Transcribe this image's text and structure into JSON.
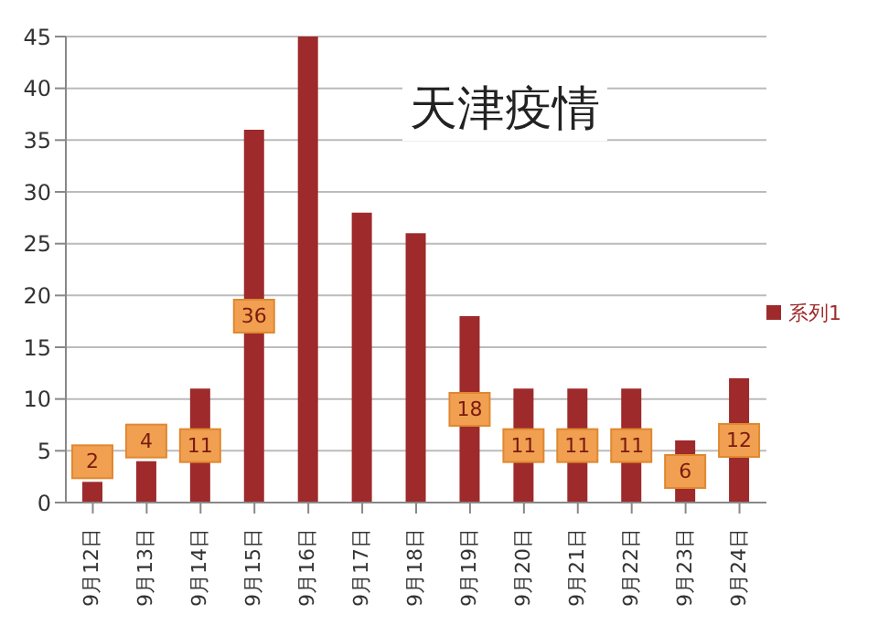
{
  "chart_data": {
    "type": "bar",
    "title": "天津疫情",
    "categories": [
      "9月12日",
      "9月13日",
      "9月14日",
      "9月15日",
      "9月16日",
      "9月17日",
      "9月18日",
      "9月19日",
      "9月20日",
      "9月21日",
      "9月22日",
      "9月23日",
      "9月24日"
    ],
    "series": [
      {
        "name": "系列1",
        "color": "#9e2a2b",
        "values": [
          2,
          4,
          11,
          36,
          45,
          28,
          26,
          18,
          11,
          11,
          11,
          6,
          12
        ],
        "value_labels": [
          "2",
          "4",
          "11",
          "36",
          null,
          null,
          null,
          "18",
          "11",
          "11",
          "11",
          "6",
          "12"
        ]
      }
    ],
    "ylim": [
      0,
      45
    ],
    "yticks": [
      0,
      5,
      10,
      15,
      20,
      25,
      30,
      35,
      40,
      45
    ],
    "grid": "y",
    "legend": "right"
  }
}
